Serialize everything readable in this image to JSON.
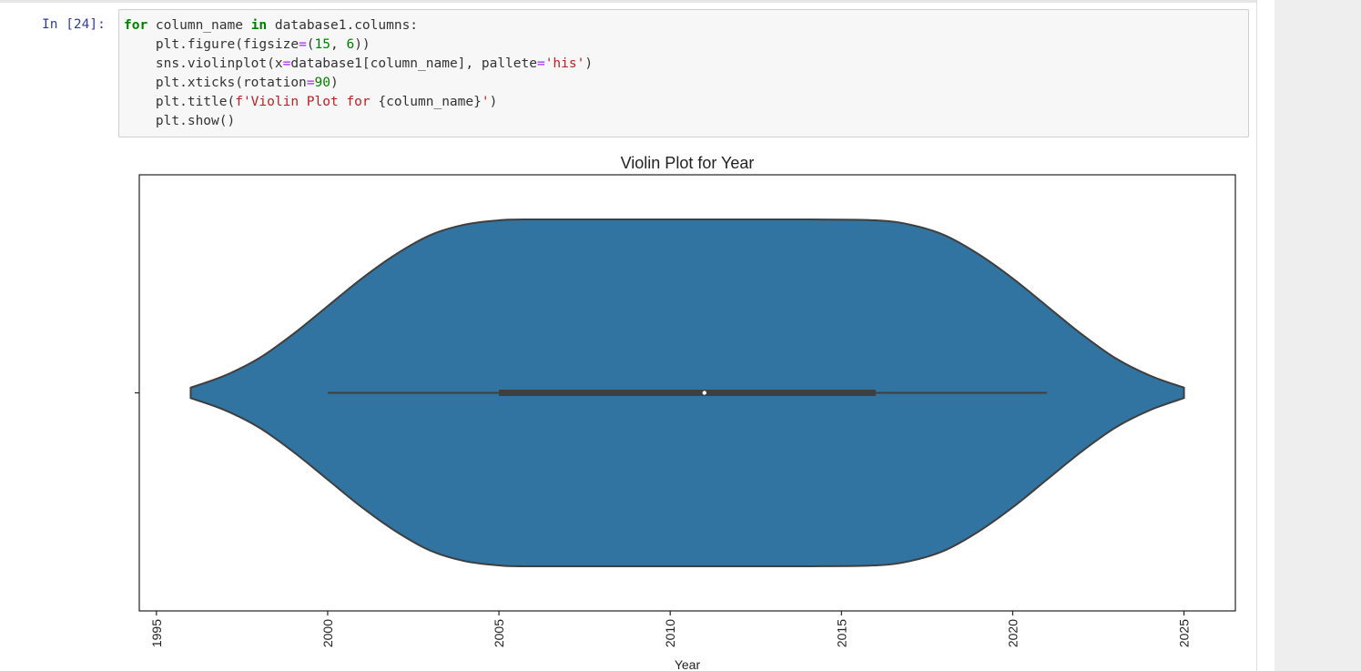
{
  "cell": {
    "prompt": "In [24]:",
    "code_lines": [
      {
        "parts": [
          {
            "cls": "kw",
            "text": "for"
          },
          {
            "cls": "",
            "text": " column_name "
          },
          {
            "cls": "kw",
            "text": "in"
          },
          {
            "cls": "",
            "text": " database1.columns:"
          }
        ]
      },
      {
        "parts": [
          {
            "cls": "",
            "text": "    plt.figure(figsize"
          },
          {
            "cls": "op",
            "text": "="
          },
          {
            "cls": "",
            "text": "("
          },
          {
            "cls": "num",
            "text": "15"
          },
          {
            "cls": "",
            "text": ", "
          },
          {
            "cls": "num",
            "text": "6"
          },
          {
            "cls": "",
            "text": "))"
          }
        ]
      },
      {
        "parts": [
          {
            "cls": "",
            "text": "    sns.violinplot(x"
          },
          {
            "cls": "op",
            "text": "="
          },
          {
            "cls": "",
            "text": "database1[column_name], pallete"
          },
          {
            "cls": "op",
            "text": "="
          },
          {
            "cls": "str",
            "text": "'his'"
          },
          {
            "cls": "",
            "text": ")"
          }
        ]
      },
      {
        "parts": [
          {
            "cls": "",
            "text": "    plt.xticks(rotation"
          },
          {
            "cls": "op",
            "text": "="
          },
          {
            "cls": "num",
            "text": "90"
          },
          {
            "cls": "",
            "text": ")"
          }
        ]
      },
      {
        "parts": [
          {
            "cls": "",
            "text": "    plt.title("
          },
          {
            "cls": "str",
            "text": "f'Violin Plot for "
          },
          {
            "cls": "",
            "text": "{column_name}"
          },
          {
            "cls": "str",
            "text": "'"
          },
          {
            "cls": "",
            "text": ")"
          }
        ]
      },
      {
        "parts": [
          {
            "cls": "",
            "text": "    plt.show()"
          }
        ]
      }
    ]
  },
  "chart_data": {
    "type": "violin",
    "title": "Violin Plot for Year",
    "xlabel": "Year",
    "ylabel": "",
    "xlim": [
      1994.5,
      2026.5
    ],
    "xticks": [
      1995,
      2000,
      2005,
      2010,
      2015,
      2020,
      2025
    ],
    "xtick_rotation": 90,
    "fill_color": "#3274a1",
    "edge_color": "#3f3f3f",
    "box": {
      "whisker_low": 2000,
      "q1": 2005,
      "median": 2011,
      "q3": 2016,
      "whisker_high": 2021
    },
    "kde_extent": [
      1996,
      2025
    ],
    "density_profile": [
      [
        1996,
        0.03
      ],
      [
        1997,
        0.1
      ],
      [
        1998,
        0.2
      ],
      [
        1999,
        0.34
      ],
      [
        2000,
        0.5
      ],
      [
        2001,
        0.66
      ],
      [
        2002,
        0.8
      ],
      [
        2003,
        0.91
      ],
      [
        2004,
        0.97
      ],
      [
        2005,
        0.995
      ],
      [
        2006,
        1.0
      ],
      [
        2010,
        1.0
      ],
      [
        2014,
        1.0
      ],
      [
        2016,
        0.995
      ],
      [
        2017,
        0.97
      ],
      [
        2018,
        0.91
      ],
      [
        2019,
        0.8
      ],
      [
        2020,
        0.66
      ],
      [
        2021,
        0.5
      ],
      [
        2022,
        0.34
      ],
      [
        2023,
        0.2
      ],
      [
        2024,
        0.1
      ],
      [
        2025,
        0.03
      ]
    ]
  }
}
